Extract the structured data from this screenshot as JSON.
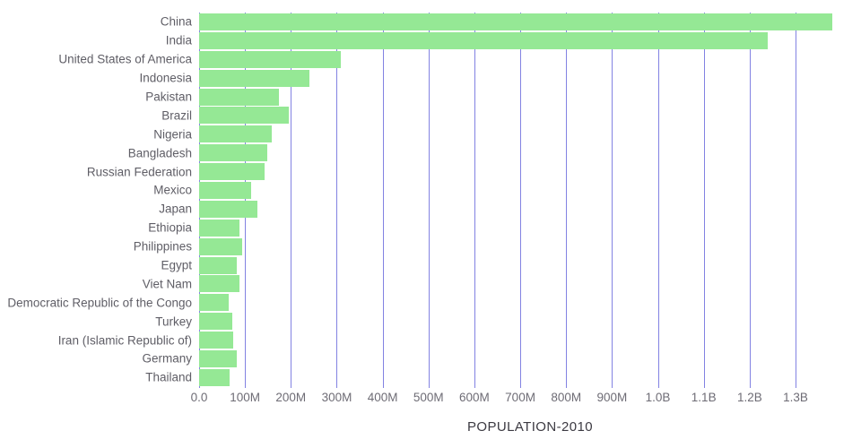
{
  "chart_data": {
    "type": "bar",
    "orientation": "horizontal",
    "title": "",
    "xlabel": "POPULATION-2010",
    "ylabel": "",
    "categories": [
      "China",
      "India",
      "United States of America",
      "Indonesia",
      "Pakistan",
      "Brazil",
      "Nigeria",
      "Bangladesh",
      "Russian Federation",
      "Mexico",
      "Japan",
      "Ethiopia",
      "Philippines",
      "Egypt",
      "Viet Nam",
      "Democratic Republic of the Congo",
      "Turkey",
      "Iran (Islamic Republic of)",
      "Germany",
      "Thailand"
    ],
    "values_millions": [
      1380,
      1240,
      309,
      240,
      174,
      195,
      158,
      149,
      143,
      114,
      128,
      87,
      93,
      82,
      88,
      64,
      72,
      74,
      82,
      66
    ],
    "x_ticks": [
      {
        "label": "0.0",
        "millions": 0
      },
      {
        "label": "100M",
        "millions": 100
      },
      {
        "label": "200M",
        "millions": 200
      },
      {
        "label": "300M",
        "millions": 300
      },
      {
        "label": "400M",
        "millions": 400
      },
      {
        "label": "500M",
        "millions": 500
      },
      {
        "label": "600M",
        "millions": 600
      },
      {
        "label": "700M",
        "millions": 700
      },
      {
        "label": "800M",
        "millions": 800
      },
      {
        "label": "900M",
        "millions": 900
      },
      {
        "label": "1.0B",
        "millions": 1000
      },
      {
        "label": "1.1B",
        "millions": 1100
      },
      {
        "label": "1.2B",
        "millions": 1200
      },
      {
        "label": "1.3B",
        "millions": 1300
      }
    ],
    "xlim_millions": [
      0,
      1443
    ],
    "grid": true,
    "legend": "none",
    "bar_color": "#95e895",
    "gridline_color": "#8282e2",
    "label_color": "#5f5e66",
    "tick_color": "#6e6c75",
    "title_color": "#3c3a42"
  }
}
